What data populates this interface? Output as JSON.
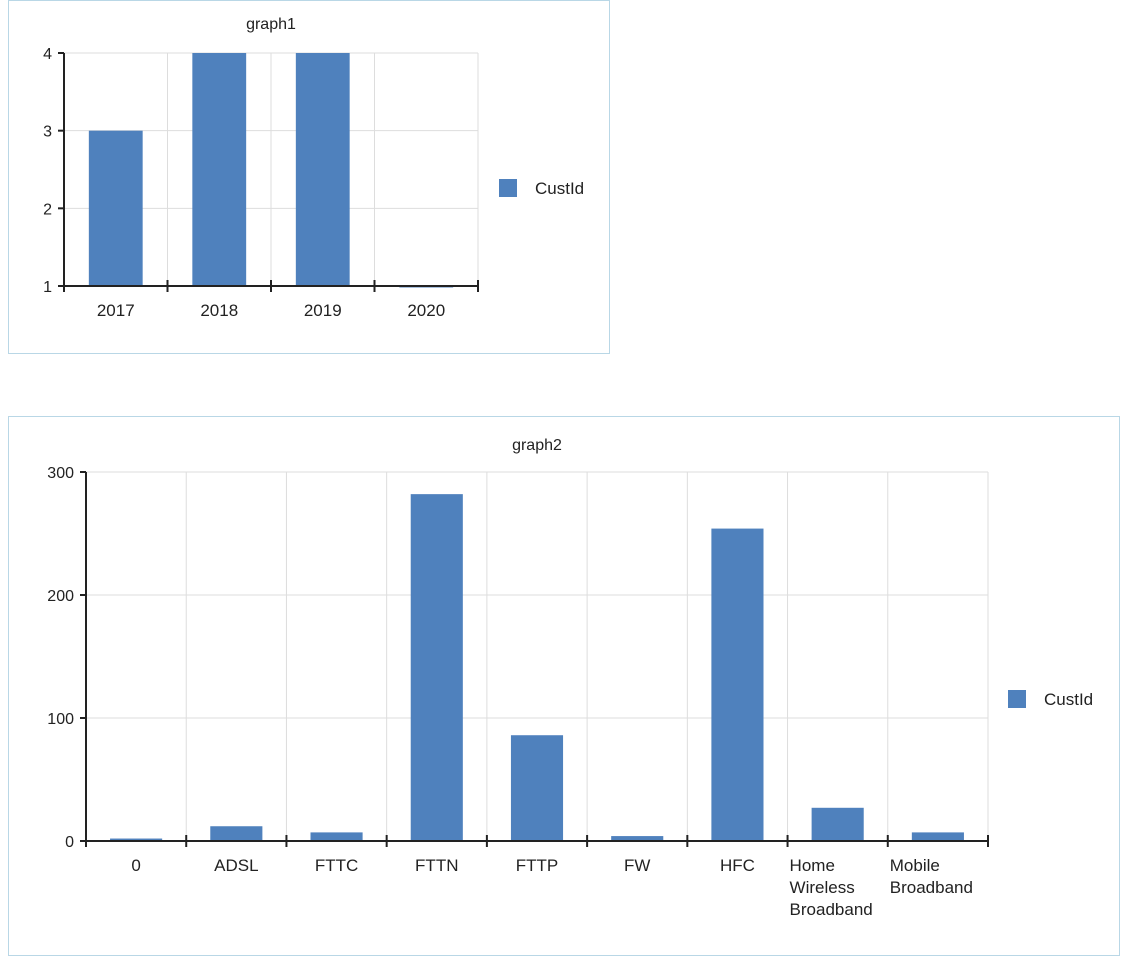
{
  "chart_data": [
    {
      "type": "bar",
      "title": "graph1",
      "categories": [
        "2017",
        "2018",
        "2019",
        "2020"
      ],
      "series": [
        {
          "name": "CustId",
          "values": [
            3,
            4,
            4,
            1
          ]
        }
      ],
      "ylim": [
        1,
        4
      ],
      "yticks": [
        "1",
        "2",
        "3",
        "4"
      ],
      "grid": true,
      "legend": "right",
      "color": "#4f81bd"
    },
    {
      "type": "bar",
      "title": "graph2",
      "categories": [
        "0",
        "ADSL",
        "FTTC",
        "FTTN",
        "FTTP",
        "FW",
        "HFC",
        "Home Wireless Broadband",
        "Mobile Broadband"
      ],
      "series": [
        {
          "name": "CustId",
          "values": [
            2,
            12,
            7,
            282,
            86,
            4,
            254,
            27,
            7
          ]
        }
      ],
      "ylim": [
        0,
        300
      ],
      "yticks": [
        "0",
        "100",
        "200",
        "300"
      ],
      "grid": true,
      "legend": "right",
      "color": "#4f81bd"
    }
  ]
}
